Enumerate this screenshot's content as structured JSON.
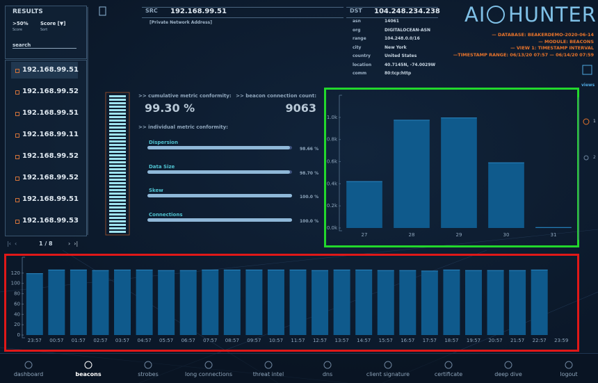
{
  "results": {
    "title": "RESULTS",
    "filter": {
      "value": ">50%",
      "caption": "Score"
    },
    "sort": {
      "value": "Score [▼]",
      "caption": "Sort"
    },
    "search": "search",
    "items": [
      "192.168.99.51",
      "192.168.99.52",
      "192.168.99.51",
      "192.168.99.11",
      "192.168.99.52",
      "192.168.99.52",
      "192.168.99.51",
      "192.168.99.53"
    ],
    "pager": "1 / 8"
  },
  "src": {
    "label": "SRC",
    "ip": "192.168.99.51",
    "note": "[Private Network Address]"
  },
  "dst": {
    "label": "DST",
    "ip": "104.248.234.238",
    "fields": [
      {
        "key": "asn",
        "value": "14061"
      },
      {
        "key": "org",
        "value": "DIGITALOCEAN-ASN"
      },
      {
        "key": "range",
        "value": "104.248.0.0/16"
      },
      {
        "key": "city",
        "value": "New York"
      },
      {
        "key": "country",
        "value": "United States"
      },
      {
        "key": "location",
        "value": "40.7145N, -74.0029W"
      },
      {
        "key": "comm",
        "value": "80:tcp:http"
      }
    ]
  },
  "logo": {
    "left": "AI",
    "right": "HUNTER"
  },
  "meta": [
    "— DATABASE: BEAKERDEMO-2020-06-14",
    "— MODULE: BEACONS",
    "— VIEW 1: TIMESTAMP INTERVAL",
    "—TIMESTAMP RANGE: 06/13/20 07:57 — 06/14/20 07:59"
  ],
  "metrics": {
    "cumulative": {
      "label": ">> cumulative metric conformity:",
      "value": "99.30 %"
    },
    "count": {
      "label": ">> beacon connection count:",
      "value": "9063"
    },
    "individual_label": ">> individual metric conformity:",
    "items": [
      {
        "name": "Dispersion",
        "value": 98.66,
        "label": "98.66 %"
      },
      {
        "name": "Data Size",
        "value": 98.7,
        "label": "98.70 %"
      },
      {
        "name": "Skew",
        "value": 100,
        "label": "100.0 %"
      },
      {
        "name": "Connections",
        "value": 100,
        "label": "100.0 %"
      }
    ]
  },
  "views": {
    "label": "views",
    "options": [
      "1",
      "2"
    ]
  },
  "chart_data": [
    {
      "type": "bar",
      "categories": [
        "27",
        "28",
        "29",
        "30",
        "31"
      ],
      "values": [
        420,
        975,
        995,
        590,
        5
      ],
      "color": "#0f5a8c",
      "ylim": [
        0,
        1150
      ],
      "yticks": [
        {
          "value": 0,
          "label": "0.0k"
        },
        {
          "value": 200,
          "label": "0.2k"
        },
        {
          "value": 400,
          "label": "0.4k"
        },
        {
          "value": 600,
          "label": "0.6k"
        },
        {
          "value": 800,
          "label": "0.8k"
        },
        {
          "value": 1000,
          "label": "1.0k"
        }
      ]
    },
    {
      "type": "bar",
      "categories": [
        "23:57",
        "00:57",
        "01:57",
        "02:57",
        "03:57",
        "04:57",
        "05:57",
        "06:57",
        "07:57",
        "08:57",
        "09:57",
        "10:57",
        "11:57",
        "12:57",
        "13:57",
        "14:57",
        "15:57",
        "16:57",
        "17:57",
        "18:57",
        "19:57",
        "20:57",
        "21:57",
        "22:57",
        "23:59"
      ],
      "values": [
        119,
        126,
        126,
        125,
        126,
        126,
        125,
        125,
        126,
        126,
        126,
        126,
        126,
        125,
        126,
        126,
        125,
        125,
        124,
        126,
        125,
        125,
        125,
        126,
        null
      ],
      "color": "#0f5a8c",
      "ylim": [
        0,
        140
      ],
      "yticks": [
        0,
        20,
        40,
        60,
        80,
        100,
        120
      ]
    }
  ],
  "nav": [
    "dashboard",
    "beacons",
    "strobes",
    "long connections",
    "threat intel",
    "dns",
    "client signature",
    "certificate",
    "deep dive",
    "logout"
  ]
}
